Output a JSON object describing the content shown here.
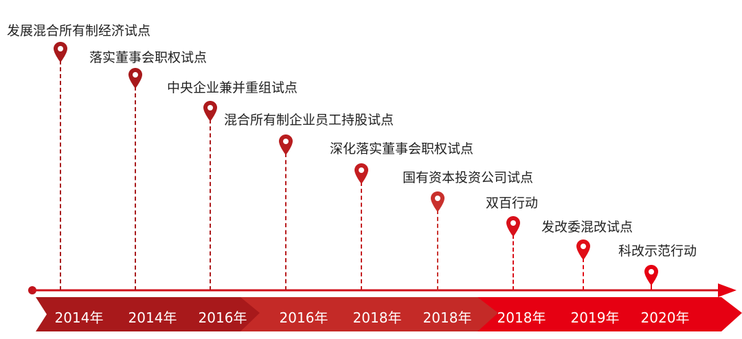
{
  "milestones": [
    {
      "label": "发展混合所有制经济试点",
      "year": "2014年",
      "color": "#a8191b"
    },
    {
      "label": "落实董事会职权试点",
      "year": "2014年",
      "color": "#a8191b"
    },
    {
      "label": "中央企业兼并重组试点",
      "year": "2016年",
      "color": "#ad1a1c"
    },
    {
      "label": "混合所有制企业员工持股试点",
      "year": "2016年",
      "color": "#b81c1e"
    },
    {
      "label": "深化落实董事会职权试点",
      "year": "2018年",
      "color": "#c41d20"
    },
    {
      "label": "国有资本投资公司试点",
      "year": "2018年",
      "color": "#c9302c"
    },
    {
      "label": "双百行动",
      "year": "2018年",
      "color": "#d8101a"
    },
    {
      "label": "发改委混改试点",
      "year": "2019年",
      "color": "#e00e17"
    },
    {
      "label": "科改示范行动",
      "year": "2020年",
      "color": "#e60012"
    }
  ],
  "colors": {
    "band_dark": "#a8191b",
    "band_mid": "#c42a27",
    "band_bright": "#e60012",
    "axis": "#d0121b"
  }
}
